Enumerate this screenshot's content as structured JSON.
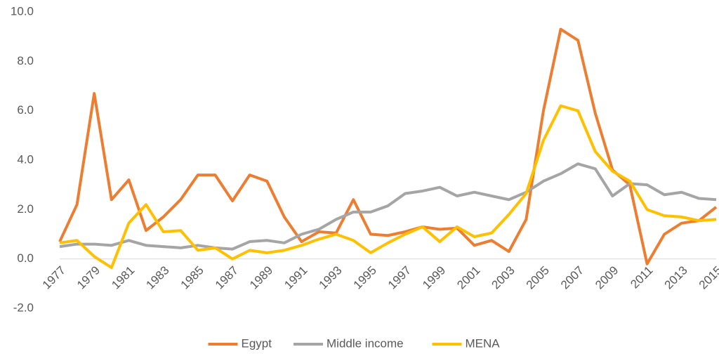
{
  "chart_data": {
    "type": "line",
    "categories": [
      "1977",
      null,
      "1979",
      null,
      "1981",
      null,
      "1983",
      null,
      "1985",
      null,
      "1987",
      null,
      "1989",
      null,
      "1991",
      null,
      "1993",
      null,
      "1995",
      null,
      "1997",
      null,
      "1999",
      null,
      "2001",
      null,
      "2003",
      null,
      "2005",
      null,
      "2007",
      null,
      "2009",
      null,
      "2011",
      null,
      "2013",
      null,
      "2015"
    ],
    "series": [
      {
        "name": "Egypt",
        "color": "#ed7d31",
        "values": [
          0.7,
          2.2,
          6.7,
          2.4,
          3.2,
          1.15,
          1.7,
          2.4,
          3.4,
          3.4,
          2.35,
          3.4,
          3.15,
          1.7,
          0.7,
          1.1,
          1.05,
          2.4,
          1.0,
          0.95,
          1.1,
          1.3,
          1.2,
          1.25,
          0.55,
          0.75,
          0.3,
          1.6,
          6.0,
          9.3,
          8.85,
          5.9,
          3.6,
          3.0,
          -0.2,
          1.0,
          1.45,
          1.55,
          2.1
        ]
      },
      {
        "name": "Middle income",
        "color": "#a5a5a5",
        "values": [
          0.5,
          0.6,
          0.6,
          0.55,
          0.75,
          0.55,
          0.5,
          0.45,
          0.55,
          0.45,
          0.4,
          0.7,
          0.75,
          0.65,
          1.0,
          1.2,
          1.6,
          1.9,
          1.9,
          2.15,
          2.65,
          2.75,
          2.9,
          2.55,
          2.7,
          2.55,
          2.4,
          2.7,
          3.15,
          3.45,
          3.85,
          3.65,
          2.55,
          3.05,
          3.0,
          2.6,
          2.7,
          2.45,
          2.4
        ]
      },
      {
        "name": "MENA",
        "color": "#ffc000",
        "values": [
          0.65,
          0.75,
          0.1,
          -0.35,
          1.45,
          2.2,
          1.1,
          1.15,
          0.35,
          0.45,
          0.0,
          0.35,
          0.25,
          0.35,
          0.55,
          0.8,
          1.0,
          0.75,
          0.25,
          0.65,
          1.0,
          1.3,
          0.7,
          1.3,
          0.9,
          1.05,
          1.8,
          2.65,
          4.8,
          6.2,
          6.0,
          4.35,
          3.55,
          3.15,
          2.0,
          1.75,
          1.7,
          1.55,
          1.6
        ]
      }
    ],
    "ylim": [
      -2,
      10
    ],
    "yticks": [
      {
        "value": -2,
        "label": "-2.0"
      },
      {
        "value": 0,
        "label": "0.0"
      },
      {
        "value": 2,
        "label": "2.0"
      },
      {
        "value": 4,
        "label": "4.0"
      },
      {
        "value": 6,
        "label": "6.0"
      },
      {
        "value": 8,
        "label": "8.0"
      },
      {
        "value": 10,
        "label": "10.0"
      }
    ],
    "legend": "bottom"
  }
}
